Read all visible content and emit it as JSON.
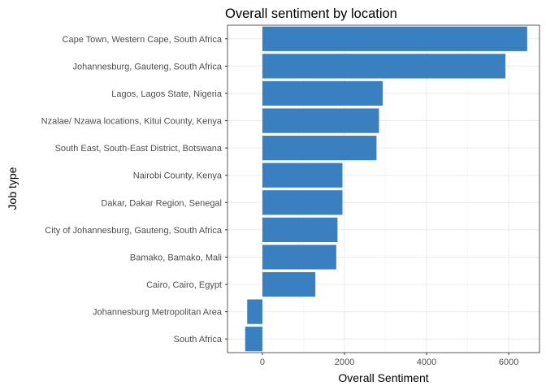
{
  "chart_data": {
    "type": "bar",
    "orientation": "horizontal",
    "title": "Overall sentiment by location",
    "xlabel": "Overall Sentiment",
    "ylabel": "Job type",
    "categories": [
      "Cape Town, Western Cape, South Africa",
      "Johannesburg, Gauteng, South Africa",
      "Lagos, Lagos State, Nigeria",
      "Nzalae/ Nzawa locations, Kitui County, Kenya",
      "South East, South-East District, Botswana",
      "Nairobi County, Kenya",
      "Dakar, Dakar Region, Senegal",
      "City of Johannesburg, Gauteng, South Africa",
      "Bamako, Bamako, Mali",
      "Cairo, Cairo, Egypt",
      "Johannesburg Metropolitan Area",
      "South Africa"
    ],
    "values": [
      6450,
      5920,
      2930,
      2840,
      2780,
      1950,
      1950,
      1830,
      1800,
      1290,
      -370,
      -420
    ],
    "xlim": [
      -850,
      6750
    ],
    "xticks": [
      0,
      2000,
      4000,
      6000
    ],
    "xtick_labels": [
      "0",
      "2000",
      "4000",
      "6000"
    ],
    "grid": true,
    "bar_color": "#3a7fbf",
    "theme": "bw"
  }
}
